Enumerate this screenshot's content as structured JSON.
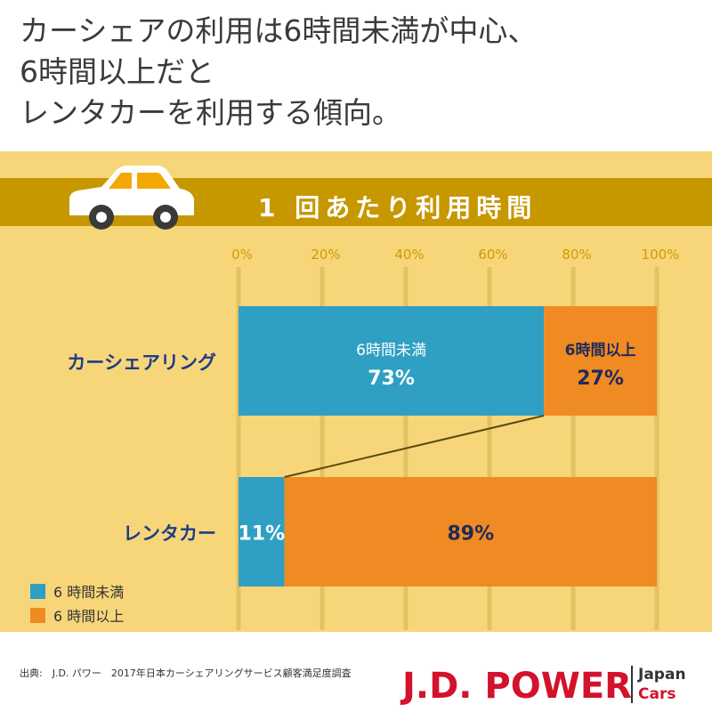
{
  "headline": {
    "line1": "カーシェアの利用は6時間未満が中心、",
    "line2": "6時間以上だと",
    "line3": "レンタカーを利用する傾向。"
  },
  "banner": {
    "title": "1 回あたり利用時間"
  },
  "colors": {
    "under6": "#2f9fc4",
    "over6": "#f08a22",
    "panel": "#f7d67a",
    "banner": "#c79700",
    "category_label": "#1f3d86",
    "brand": "#d3122c"
  },
  "chart_data": {
    "type": "bar",
    "orientation": "horizontal-stacked-100",
    "title": "1 回あたり利用時間",
    "x_ticks": [
      "0%",
      "20%",
      "40%",
      "60%",
      "80%",
      "100%"
    ],
    "xlim": [
      0,
      100
    ],
    "categories": [
      "カーシェアリング",
      "レンタカー"
    ],
    "series": [
      {
        "name": "6時間未満",
        "legend_label": "6 時間未満",
        "values": [
          73,
          11
        ],
        "labels": [
          {
            "name": "6時間未満",
            "pct": "73%"
          },
          {
            "name": "",
            "pct": "11%"
          }
        ]
      },
      {
        "name": "6時間以上",
        "legend_label": "6 時間以上",
        "values": [
          27,
          89
        ],
        "labels": [
          {
            "name": "6時間以上",
            "pct": "27%"
          },
          {
            "name": "",
            "pct": "89%"
          }
        ]
      }
    ],
    "grid": true,
    "legend": "bottom-left"
  },
  "footer": {
    "source": "出典:　J.D. パワー　2017年日本カーシェアリングサービス顧客満足度調査",
    "brand": "J.D. POWER",
    "brand_sub1": "Japan",
    "brand_sub2": "Cars"
  }
}
